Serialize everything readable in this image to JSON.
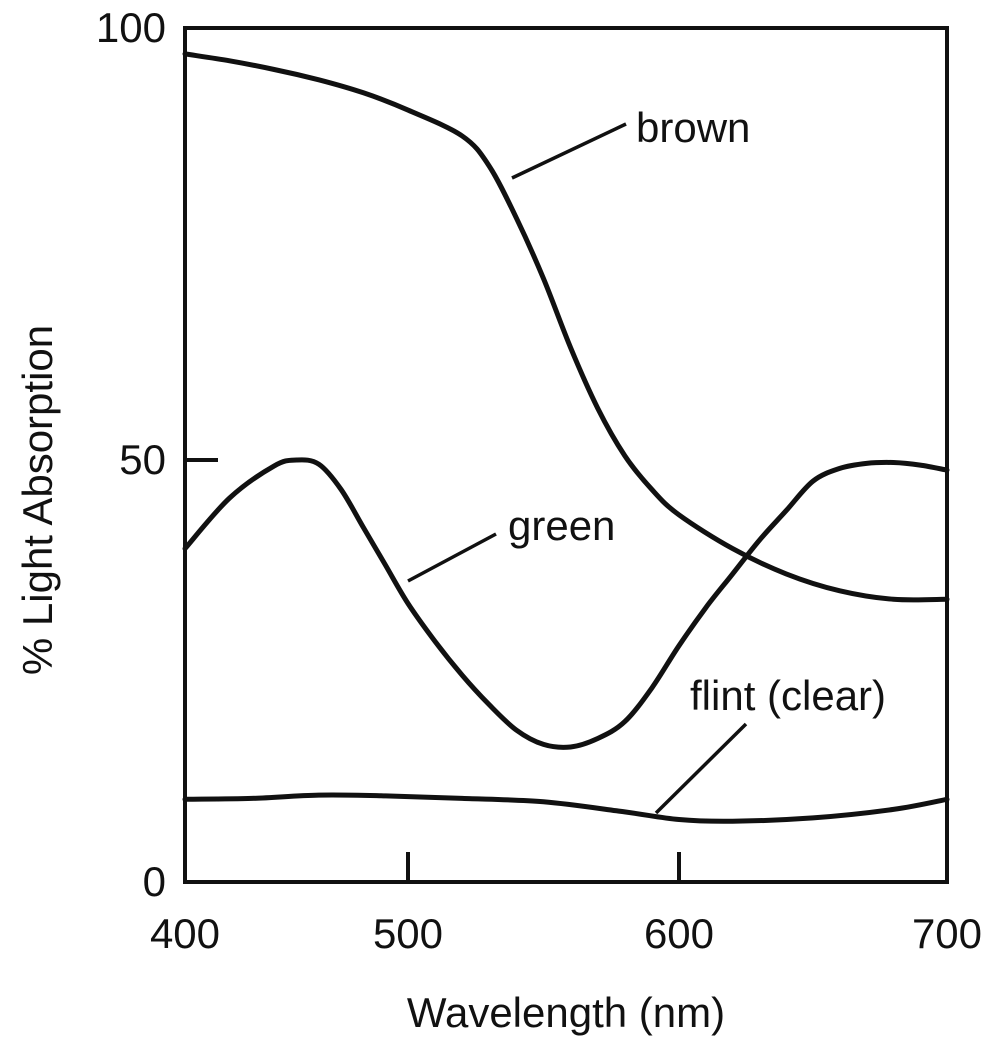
{
  "chart_data": {
    "type": "line",
    "title": "",
    "xlabel": "Wavelength (nm)",
    "ylabel": "% Light Absorption",
    "xlim": [
      400,
      700
    ],
    "ylim": [
      0,
      100
    ],
    "x_ticks": [
      400,
      500,
      600,
      700
    ],
    "y_ticks": [
      0,
      50,
      100
    ],
    "grid": false,
    "legend": "none",
    "series": [
      {
        "name": "brown",
        "x": [
          400,
          420,
          440,
          460,
          480,
          500,
          520,
          530,
          540,
          550,
          560,
          570,
          580,
          590,
          600,
          620,
          640,
          660,
          680,
          700
        ],
        "y": [
          97,
          96.2,
          95.2,
          94,
          92.5,
          90.5,
          87.5,
          84,
          78,
          71,
          63,
          56,
          50.5,
          46.5,
          43.5,
          39.5,
          36.5,
          34.5,
          33.5,
          33.5
        ]
      },
      {
        "name": "green",
        "x": [
          400,
          420,
          440,
          450,
          460,
          470,
          480,
          490,
          500,
          510,
          520,
          530,
          540,
          550,
          560,
          570,
          580,
          590,
          600,
          610,
          620,
          630,
          640,
          650,
          660,
          670,
          680,
          690,
          700
        ],
        "y": [
          39.5,
          45.5,
          49.3,
          50,
          49.5,
          46.5,
          42,
          37.5,
          33,
          28.5,
          24.5,
          21,
          18,
          16.3,
          16,
          17,
          19,
          23,
          28,
          32.5,
          36.5,
          40.5,
          44,
          47.5,
          49,
          49.6,
          49.7,
          49.4,
          48.8
        ]
      },
      {
        "name": "flint (clear)",
        "x": [
          400,
          430,
          460,
          490,
          520,
          550,
          580,
          600,
          620,
          650,
          680,
          700
        ],
        "y": [
          9.8,
          9.9,
          10.3,
          10.2,
          9.9,
          9.5,
          8.3,
          7.4,
          7.2,
          7.6,
          8.6,
          9.8
        ]
      }
    ],
    "annotations": [
      {
        "series": "brown",
        "text": "brown"
      },
      {
        "series": "green",
        "text": "green"
      },
      {
        "series": "flint (clear)",
        "text": "flint (clear)"
      }
    ]
  }
}
